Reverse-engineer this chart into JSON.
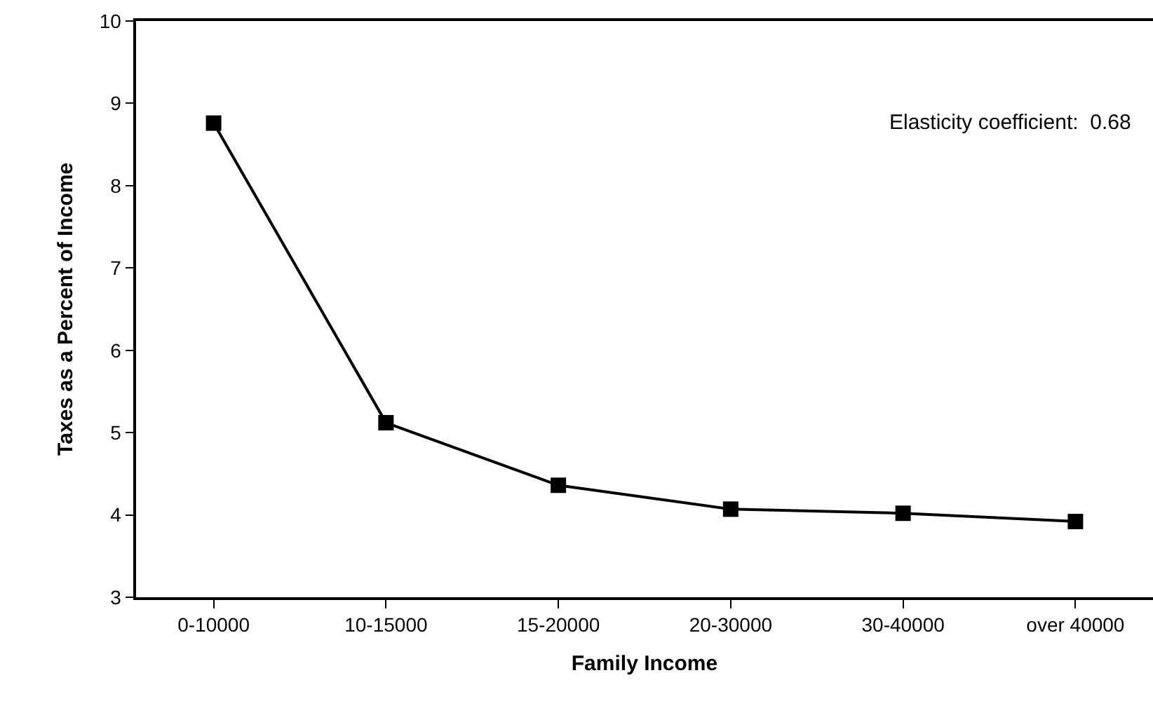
{
  "chart_data": {
    "type": "line",
    "xlabel": "Family Income",
    "ylabel": "Taxes as a Percent of Income",
    "categories": [
      "0-10000",
      "10-15000",
      "15-20000",
      "20-30000",
      "30-40000",
      "over 40000"
    ],
    "series": [
      {
        "color": "#000000",
        "values": [
          8.76,
          5.12,
          4.36,
          4.07,
          4.02,
          3.92
        ]
      }
    ],
    "ylim": [
      3,
      10
    ],
    "yticks": [
      3,
      4,
      5,
      6,
      7,
      8,
      9,
      10
    ],
    "annotations": [
      "Elasticity coefficient:  0.68"
    ],
    "marker": "square",
    "line_style": "solid"
  }
}
